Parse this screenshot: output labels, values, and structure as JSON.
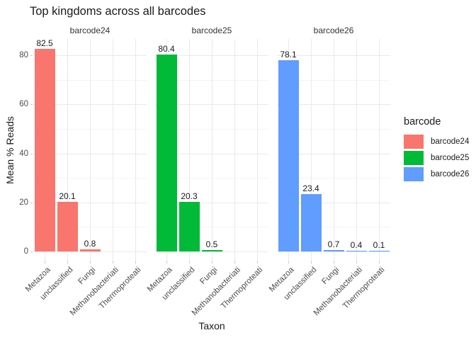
{
  "title": "Top kingdoms across all barcodes",
  "chart_data": {
    "type": "bar",
    "title": "Top kingdoms across all barcodes",
    "xlabel": "Taxon",
    "ylabel": "Mean % Reads",
    "ylim": [
      0,
      86.6
    ],
    "y_ticks": [
      0,
      20,
      40,
      60,
      80
    ],
    "y_minor_gridlines": [
      10,
      30,
      50,
      70
    ],
    "grid": "on",
    "legend_position": "right",
    "categories": [
      "Metazoa",
      "unclassified",
      "Fungi",
      "Methanobacteriati",
      "Thermoproteati"
    ],
    "facets": [
      {
        "label": "barcode24",
        "color": "#F8766D",
        "values": [
          82.5,
          20.1,
          0.8,
          null,
          null
        ]
      },
      {
        "label": "barcode25",
        "color": "#00BA38",
        "values": [
          80.4,
          20.3,
          0.5,
          null,
          null
        ]
      },
      {
        "label": "barcode26",
        "color": "#619CFF",
        "values": [
          78.1,
          23.4,
          0.7,
          0.4,
          0.1
        ]
      }
    ]
  },
  "legend": {
    "title": "barcode",
    "entries": [
      {
        "label": "barcode24",
        "color": "#F8766D"
      },
      {
        "label": "barcode25",
        "color": "#00BA38"
      },
      {
        "label": "barcode26",
        "color": "#619CFF"
      }
    ]
  },
  "colors": {
    "background": "#FFFFFF",
    "grid_major": "#E9E9E9",
    "grid_minor": "#F4F4F4",
    "tick_mark": "#C4C4C4",
    "axis_text": "#4D4D4D",
    "text": "#1A1A1A"
  }
}
